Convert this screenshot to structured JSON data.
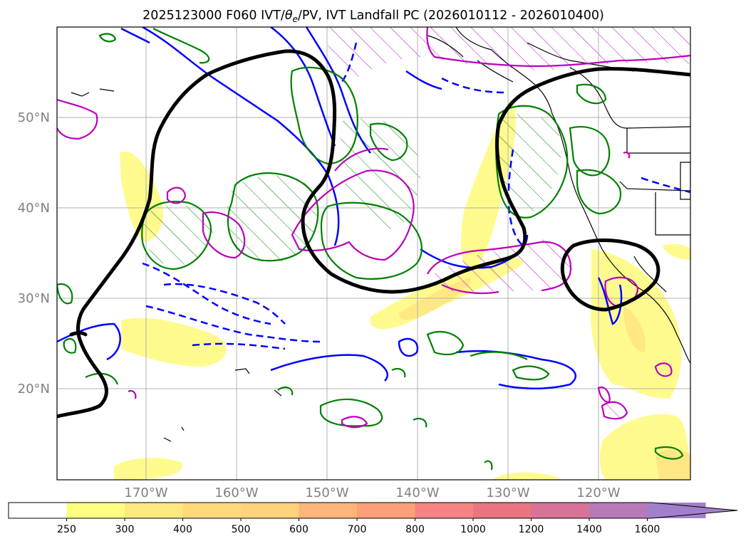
{
  "title": {
    "prefix": "2025123000 F060 IVT/",
    "theta": "θ",
    "theta_sub": "e",
    "suffix": "/PV, IVT Landfall PC (2026010112 - 2026010400)"
  },
  "map": {
    "lat_labels": [
      "50°N",
      "40°N",
      "30°N",
      "20°N"
    ],
    "lon_labels": [
      "170°W",
      "160°W",
      "150°W",
      "140°W",
      "130°W",
      "120°W"
    ],
    "grid": true,
    "colors": {
      "coast": "#000000",
      "theta_e_contour": "#0000ff",
      "pv_contour": "#008000",
      "landfall_contour": "#bb00bb",
      "ivt_pc_contour": "#000000",
      "ivt_fill_low": "#fff97a"
    }
  },
  "colorbar": {
    "ticks": [
      "250",
      "300",
      "400",
      "500",
      "600",
      "700",
      "800",
      "1000",
      "1200",
      "1400",
      "1600"
    ],
    "colors": [
      "#ffffff",
      "#ffff80",
      "#ffe97e",
      "#ffd97b",
      "#ffd27c",
      "#ffb479",
      "#ff9f7a",
      "#f58383",
      "#e97581",
      "#d77298",
      "#b87ab7",
      "#a27fca"
    ]
  }
}
